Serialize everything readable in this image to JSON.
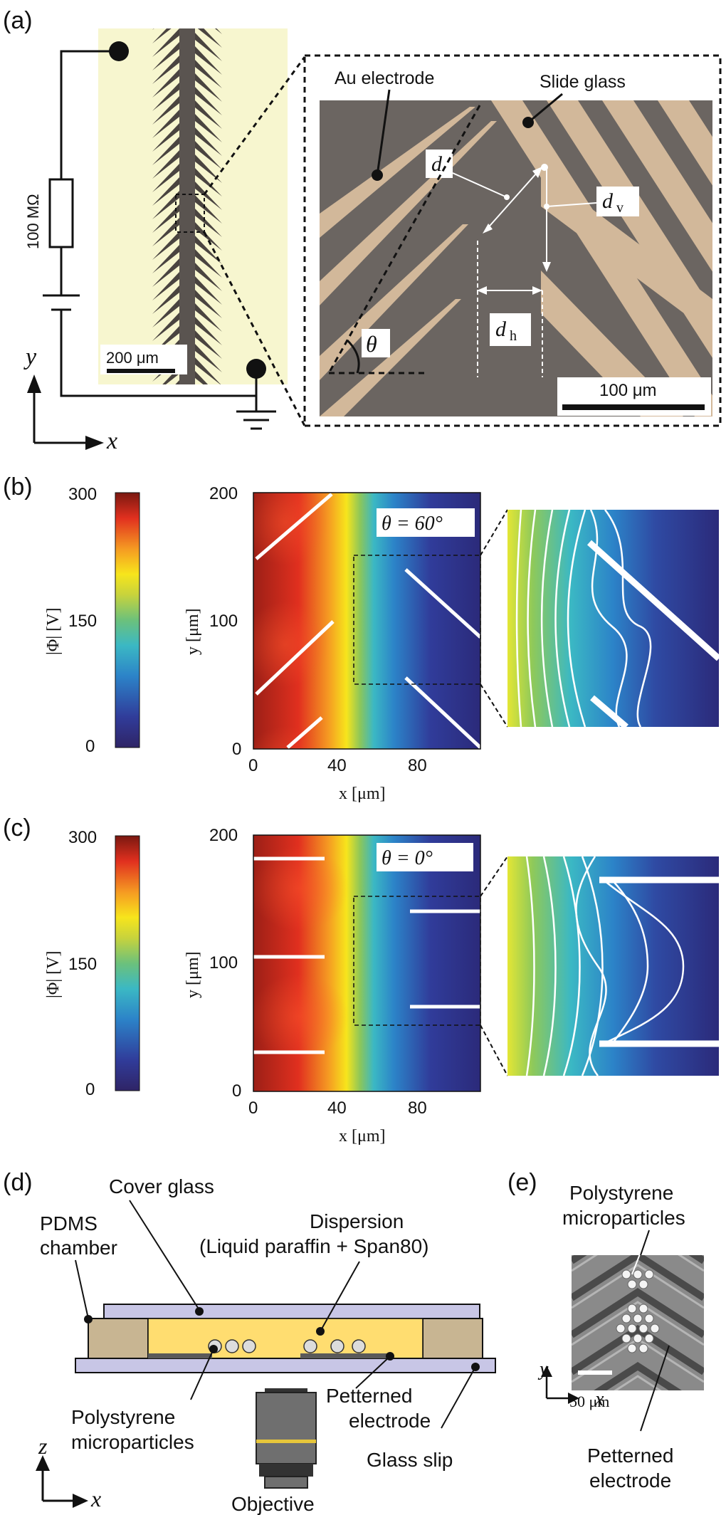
{
  "panels": {
    "a": {
      "label": "(a)",
      "resistor": "100 MΩ",
      "scale_left": "200 μm",
      "axis_x": "x",
      "axis_y": "y",
      "au_electrode": "Au electrode",
      "slide_glass": "Slide glass",
      "d": "d",
      "dv_main": "d",
      "dv_sub": "v",
      "dh_main": "d",
      "dh_sub": "h",
      "theta": "θ",
      "scale_right": "100 μm"
    },
    "b": {
      "label": "(b)",
      "cbar_label": "|Φ| [V]",
      "cbar_ticks": [
        "300",
        "150",
        "0"
      ],
      "theta_label": "θ = 60°",
      "y_ticks": [
        "200",
        "100",
        "0"
      ],
      "x_ticks": [
        "0",
        "40",
        "80"
      ],
      "xlabel": "x [μm]",
      "ylabel": "y [μm]"
    },
    "c": {
      "label": "(c)",
      "cbar_label": "|Φ| [V]",
      "cbar_ticks": [
        "300",
        "150",
        "0"
      ],
      "theta_label": "θ = 0°",
      "y_ticks": [
        "200",
        "100",
        "0"
      ],
      "x_ticks": [
        "0",
        "40",
        "80"
      ],
      "xlabel": "x [μm]",
      "ylabel": "y [μm]"
    },
    "d": {
      "label": "(d)",
      "cover_glass": "Cover glass",
      "pdms_1": "PDMS",
      "pdms_2": "chamber",
      "dispersion_1": "Dispersion",
      "dispersion_2": "(Liquid paraffin + Span80)",
      "ps_1": "Polystyrene",
      "ps_2": "microparticles",
      "pe_1": "Petterned",
      "pe_2": "electrode",
      "glass_slip": "Glass slip",
      "objective": "Objective",
      "axis_z": "z",
      "axis_x": "x"
    },
    "e": {
      "label": "(e)",
      "ps_1": "Polystyrene",
      "ps_2": "microparticles",
      "scale": "50 μm",
      "axis_y": "y",
      "axis_x": "x",
      "pe_1": "Petterned",
      "pe_2": "electrode"
    }
  },
  "colors": {
    "slide_glass": "#6b6561",
    "au_stripe": "#d2b89a",
    "optical_bg": "#f7f6cf",
    "pdms": "#c8b592",
    "dispersion": "#ffdd70",
    "glass": "#c8c6e6"
  }
}
